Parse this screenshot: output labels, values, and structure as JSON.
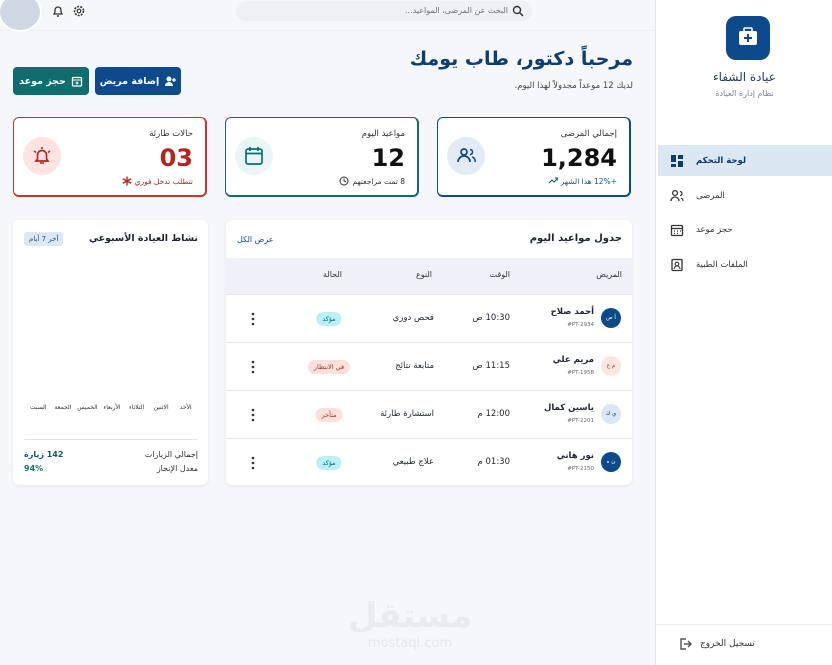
{
  "sidebar": {
    "brand": "عيادة الشفاء",
    "subtitle": "نظام إدارة العيادة",
    "nav": [
      "لوحة التحكم",
      "المرضى",
      "حجز موعد",
      "الملفات الطبية"
    ],
    "logout": "تسجيل الخروج"
  },
  "topbar": {
    "search_placeholder": "البحث عن المرضى، المواعيد..."
  },
  "header": {
    "title": "مرحباً دكتور، طاب يومك",
    "subtitle": "لديك 12 موعداً مجدولاً لهذا اليوم.",
    "buttons": [
      "إضافة مريض",
      "حجز موعد"
    ]
  },
  "stats": [
    {
      "label": "إجمالي المرضى",
      "value": "1,284",
      "note": "+12% هذا الشهر"
    },
    {
      "label": "مواعيد اليوم",
      "value": "12",
      "note": "8 تمت مراجعتهم"
    },
    {
      "label": "حالات طارئة",
      "value": "03",
      "note": "تتطلب تدخل فوري"
    }
  ],
  "appointments": {
    "title": "جدول مواعيد اليوم",
    "view_all": "عرض الكل",
    "columns": [
      "المريض",
      "الوقت",
      "النوع",
      "الحالة"
    ],
    "rows": [
      {
        "initials": "أ ص",
        "name": "أحمد صلاح",
        "id": "#PT-2934",
        "time": "10:30 ص",
        "type": "فحص دوري",
        "status": "مؤكد"
      },
      {
        "initials": "م ع",
        "name": "مريم علي",
        "id": "#PT-1958",
        "time": "11:15 ص",
        "type": "متابعة نتائج",
        "status": "في الانتظار"
      },
      {
        "initials": "ي ك",
        "name": "ياسين كمال",
        "id": "#PT-2201",
        "time": "12:00 م",
        "type": "استشارة طارئة",
        "status": "متأخر"
      },
      {
        "initials": "ن ه",
        "name": "نور هاني",
        "id": "#PT-2150",
        "time": "01:30 م",
        "type": "علاج طبيعي",
        "status": "مؤكد"
      }
    ]
  },
  "activity": {
    "title": "نشاط العيادة الأسبوعي",
    "range": "آخر 7 أيام",
    "days": [
      "الأحد",
      "الاثنين",
      "الثلاثاء",
      "الأربعاء",
      "الخميس",
      "الجمعة",
      "السبت"
    ],
    "total_label": "إجمالي الزيارات",
    "total": "142 زيارة",
    "rate_label": "معدل الإنجاز",
    "rate": "94%"
  },
  "watermark": {
    "logo": "مستقل",
    "url": "mostaql.com"
  }
}
